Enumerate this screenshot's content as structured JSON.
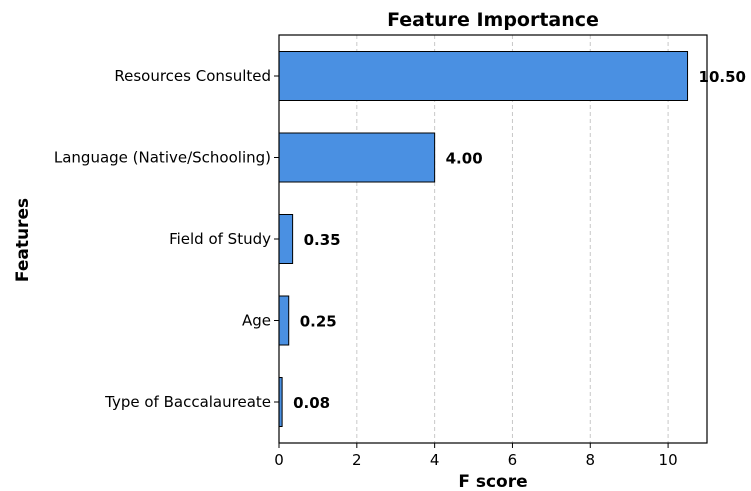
{
  "chart_data": {
    "type": "bar",
    "orientation": "horizontal",
    "title": "Feature Importance",
    "xlabel": "F score",
    "ylabel": "Features",
    "categories": [
      "Resources Consulted",
      "Language (Native/Schooling)",
      "Field of Study",
      "Age",
      "Type of Baccalaureate"
    ],
    "values": [
      10.5,
      4.0,
      0.35,
      0.25,
      0.08
    ],
    "value_labels": [
      "10.50",
      "4.00",
      "0.35",
      "0.25",
      "0.08"
    ],
    "xlim": [
      0,
      11
    ],
    "xticks": [
      0,
      2,
      4,
      6,
      8,
      10
    ],
    "xtick_labels": [
      "0",
      "2",
      "4",
      "6",
      "8",
      "10"
    ],
    "grid": "x-dashed",
    "bar_color": "#4a90e2",
    "bar_edge_color": "#000000"
  }
}
